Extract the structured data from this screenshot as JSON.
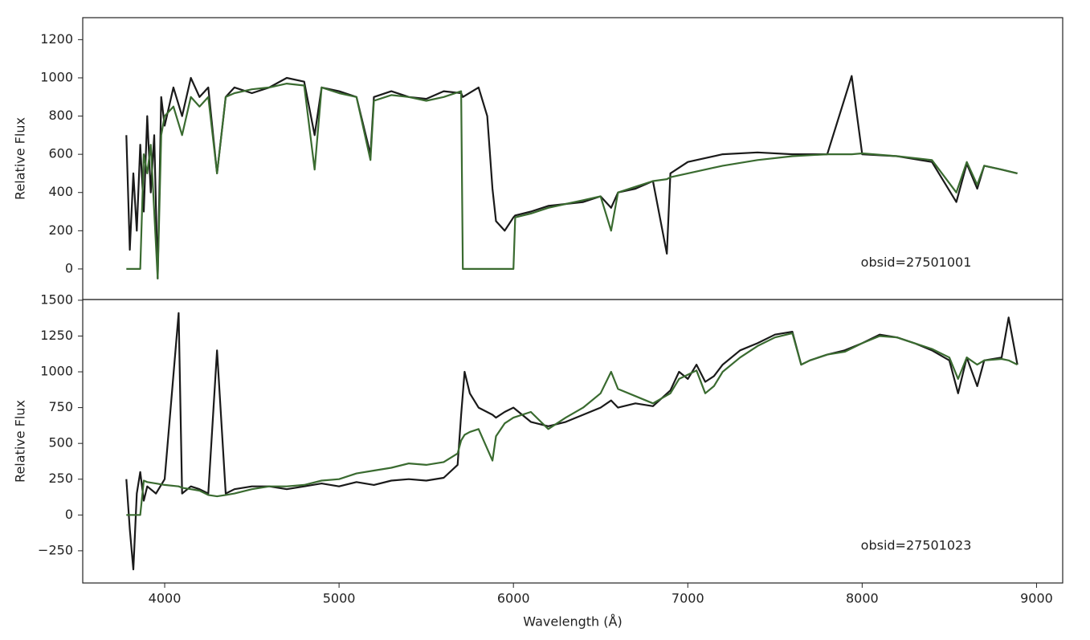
{
  "chart_data": [
    {
      "type": "line",
      "annotation": "obsid=27501001",
      "ylabel": "Relative Flux",
      "xlim": [
        3530,
        9150
      ],
      "ylim": [
        -160,
        1315
      ],
      "yticks": [
        0,
        200,
        400,
        600,
        800,
        1000,
        1200
      ],
      "x": [
        3780,
        3800,
        3820,
        3840,
        3860,
        3880,
        3900,
        3920,
        3940,
        3960,
        3980,
        4000,
        4050,
        4100,
        4150,
        4200,
        4250,
        4300,
        4350,
        4400,
        4500,
        4600,
        4700,
        4800,
        4860,
        4900,
        5000,
        5100,
        5180,
        5200,
        5300,
        5400,
        5500,
        5600,
        5700,
        5710,
        5800,
        5850,
        5880,
        5900,
        5950,
        6000,
        6010,
        6100,
        6200,
        6300,
        6400,
        6500,
        6560,
        6600,
        6700,
        6800,
        6880,
        6900,
        7000,
        7200,
        7400,
        7600,
        7800,
        7940,
        8000,
        8200,
        8400,
        8540,
        8600,
        8660,
        8700,
        8800,
        8890
      ],
      "series": [
        {
          "color": "#1a1a1a",
          "values": [
            700,
            100,
            500,
            200,
            650,
            300,
            800,
            400,
            700,
            -50,
            900,
            750,
            950,
            800,
            1000,
            900,
            950,
            500,
            900,
            950,
            920,
            950,
            1000,
            980,
            700,
            950,
            930,
            900,
            600,
            900,
            930,
            900,
            890,
            930,
            920,
            900,
            950,
            800,
            420,
            250,
            200,
            270,
            280,
            300,
            330,
            340,
            350,
            380,
            320,
            400,
            420,
            460,
            80,
            500,
            560,
            600,
            610,
            600,
            600,
            1010,
            600,
            590,
            560,
            350,
            550,
            420,
            540,
            520,
            500
          ]
        },
        {
          "color": "#3a6b30",
          "values": [
            0,
            0,
            0,
            0,
            0,
            600,
            500,
            650,
            300,
            -50,
            700,
            800,
            850,
            700,
            900,
            850,
            900,
            500,
            900,
            920,
            940,
            950,
            970,
            960,
            520,
            950,
            920,
            900,
            570,
            880,
            910,
            900,
            880,
            900,
            930,
            0,
            0,
            0,
            0,
            0,
            0,
            0,
            270,
            290,
            320,
            340,
            360,
            380,
            200,
            400,
            430,
            460,
            470,
            480,
            500,
            540,
            570,
            590,
            600,
            600,
            605,
            590,
            570,
            400,
            560,
            440,
            540,
            520,
            500
          ]
        }
      ]
    },
    {
      "type": "line",
      "annotation": "obsid=27501023",
      "ylabel": "Relative Flux",
      "xlabel": "Wavelength (Å)",
      "xlim": [
        3530,
        9150
      ],
      "ylim": [
        -475,
        1505
      ],
      "xticks": [
        4000,
        5000,
        6000,
        7000,
        8000,
        9000
      ],
      "yticks": [
        {
          "value": -250,
          "label": "−250"
        },
        0,
        250,
        500,
        750,
        1000,
        1250,
        1500
      ],
      "x": [
        3780,
        3800,
        3820,
        3840,
        3860,
        3880,
        3900,
        3950,
        4000,
        4080,
        4100,
        4150,
        4200,
        4250,
        4300,
        4350,
        4400,
        4500,
        4600,
        4700,
        4800,
        4900,
        5000,
        5100,
        5200,
        5300,
        5400,
        5500,
        5600,
        5680,
        5700,
        5720,
        5750,
        5800,
        5880,
        5900,
        5950,
        6000,
        6100,
        6200,
        6300,
        6400,
        6500,
        6560,
        6600,
        6700,
        6800,
        6900,
        6950,
        7000,
        7050,
        7100,
        7150,
        7200,
        7300,
        7400,
        7500,
        7600,
        7650,
        7700,
        7800,
        7900,
        8000,
        8100,
        8200,
        8300,
        8400,
        8500,
        8550,
        8600,
        8660,
        8700,
        8800,
        8840,
        8890
      ],
      "series": [
        {
          "color": "#1a1a1a",
          "values": [
            250,
            -100,
            -380,
            150,
            300,
            100,
            200,
            150,
            250,
            1410,
            150,
            200,
            180,
            150,
            1150,
            150,
            180,
            200,
            200,
            180,
            200,
            220,
            200,
            230,
            210,
            240,
            250,
            240,
            260,
            350,
            700,
            1000,
            850,
            750,
            700,
            680,
            720,
            750,
            650,
            620,
            650,
            700,
            750,
            800,
            750,
            780,
            760,
            870,
            1000,
            950,
            1050,
            930,
            970,
            1050,
            1150,
            1200,
            1260,
            1280,
            1050,
            1080,
            1120,
            1150,
            1200,
            1260,
            1240,
            1200,
            1150,
            1080,
            850,
            1100,
            900,
            1080,
            1100,
            1380,
            1050
          ]
        },
        {
          "color": "#3a6b30",
          "values": [
            0,
            0,
            0,
            0,
            0,
            240,
            230,
            220,
            210,
            200,
            190,
            180,
            170,
            140,
            130,
            140,
            150,
            180,
            200,
            200,
            210,
            240,
            250,
            290,
            310,
            330,
            360,
            350,
            370,
            430,
            520,
            560,
            580,
            600,
            380,
            550,
            640,
            680,
            720,
            600,
            680,
            750,
            850,
            1000,
            880,
            830,
            780,
            850,
            950,
            980,
            1010,
            850,
            900,
            1000,
            1100,
            1180,
            1240,
            1270,
            1050,
            1080,
            1120,
            1140,
            1200,
            1250,
            1240,
            1200,
            1160,
            1100,
            950,
            1100,
            1050,
            1080,
            1090,
            1080,
            1050
          ]
        }
      ]
    }
  ]
}
